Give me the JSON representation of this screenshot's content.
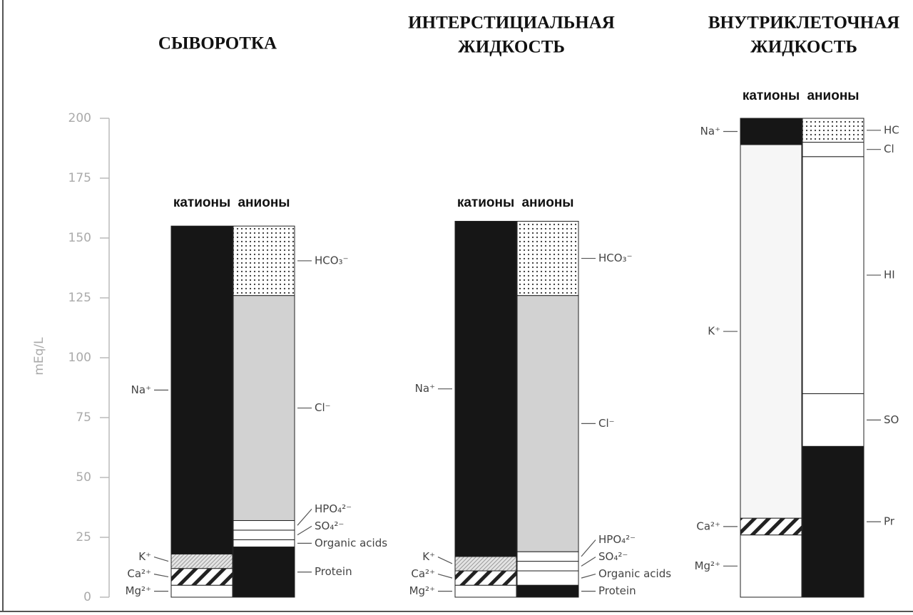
{
  "chart_data": [
    {
      "type": "bar",
      "stacked": true,
      "title": [
        "СЫВОРОТКА"
      ],
      "ylabel": "mEq/L",
      "categories": [
        "катионы",
        "анионы"
      ],
      "ylim": [
        0,
        200
      ],
      "yticks": [
        0,
        25,
        50,
        75,
        100,
        125,
        150,
        175,
        200
      ],
      "series": [
        {
          "name": "Mg²⁺",
          "color": "#ffffff",
          "values": [
            5,
            null
          ]
        },
        {
          "name": "Ca²⁺",
          "color": "#ffffff",
          "pattern": "hatch",
          "values": [
            7,
            null
          ]
        },
        {
          "name": "K⁺",
          "color": "#e4e4e4",
          "pattern": "fine-hatch",
          "values": [
            6,
            null
          ]
        },
        {
          "name": "Na⁺",
          "color": "#161616",
          "values": [
            137,
            null
          ]
        },
        {
          "name": "Protein",
          "color": "#161616",
          "values": [
            null,
            21
          ]
        },
        {
          "name": "Organic acids",
          "color": "#ffffff",
          "values": [
            null,
            3
          ]
        },
        {
          "name": "SO₄²⁻",
          "color": "#ffffff",
          "values": [
            null,
            4
          ]
        },
        {
          "name": "HPO₄²⁻",
          "color": "#ffffff",
          "values": [
            null,
            4
          ]
        },
        {
          "name": "Cl⁻",
          "color": "#d2d2d2",
          "values": [
            null,
            94
          ]
        },
        {
          "name": "HCO₃⁻",
          "color": "#ffffff",
          "pattern": "dots",
          "values": [
            null,
            29
          ]
        }
      ]
    },
    {
      "type": "bar",
      "stacked": true,
      "title": [
        "ИНТЕРСТИЦИАЛЬНАЯ",
        "ЖИДКОСТЬ"
      ],
      "categories": [
        "катионы",
        "анионы"
      ],
      "ylim": [
        0,
        200
      ],
      "series": [
        {
          "name": "Mg²⁺",
          "color": "#ffffff",
          "values": [
            5,
            null
          ]
        },
        {
          "name": "Ca²⁺",
          "color": "#ffffff",
          "pattern": "hatch",
          "values": [
            6,
            null
          ]
        },
        {
          "name": "K⁺",
          "color": "#e4e4e4",
          "pattern": "fine-hatch",
          "values": [
            6,
            null
          ]
        },
        {
          "name": "Na⁺",
          "color": "#161616",
          "values": [
            140,
            null
          ]
        },
        {
          "name": "Protein",
          "color": "#161616",
          "values": [
            null,
            5
          ]
        },
        {
          "name": "Organic acids",
          "color": "#ffffff",
          "values": [
            null,
            6
          ]
        },
        {
          "name": "SO₄²⁻",
          "color": "#ffffff",
          "values": [
            null,
            4
          ]
        },
        {
          "name": "HPO₄²⁻",
          "color": "#ffffff",
          "values": [
            null,
            4
          ]
        },
        {
          "name": "Cl⁻",
          "color": "#d2d2d2",
          "values": [
            null,
            107
          ]
        },
        {
          "name": "HCO₃⁻",
          "color": "#ffffff",
          "pattern": "dots",
          "values": [
            null,
            31
          ]
        }
      ]
    },
    {
      "type": "bar",
      "stacked": true,
      "title": [
        "ВНУТРИКЛЕТОЧНАЯ",
        "ЖИДКОСТЬ"
      ],
      "categories": [
        "катионы",
        "анионы"
      ],
      "ylim": [
        0,
        200
      ],
      "series": [
        {
          "name": "Mg²⁺",
          "color": "#ffffff",
          "values": [
            26,
            null
          ]
        },
        {
          "name": "Ca²⁺",
          "color": "#ffffff",
          "pattern": "hatch",
          "values": [
            7,
            null
          ]
        },
        {
          "name": "K⁺",
          "color": "#f6f6f6",
          "values": [
            156,
            null
          ]
        },
        {
          "name": "Na⁺",
          "color": "#161616",
          "values": [
            11,
            null
          ]
        },
        {
          "name": "Pr",
          "color": "#161616",
          "values": [
            null,
            63
          ]
        },
        {
          "name": "SO",
          "color": "#ffffff",
          "values": [
            null,
            22
          ]
        },
        {
          "name": "HI",
          "color": "#ffffff",
          "values": [
            null,
            99
          ]
        },
        {
          "name": "Cl",
          "color": "#ffffff",
          "values": [
            null,
            6
          ]
        },
        {
          "name": "HC",
          "color": "#ffffff",
          "pattern": "dots",
          "values": [
            null,
            10
          ]
        }
      ]
    }
  ]
}
